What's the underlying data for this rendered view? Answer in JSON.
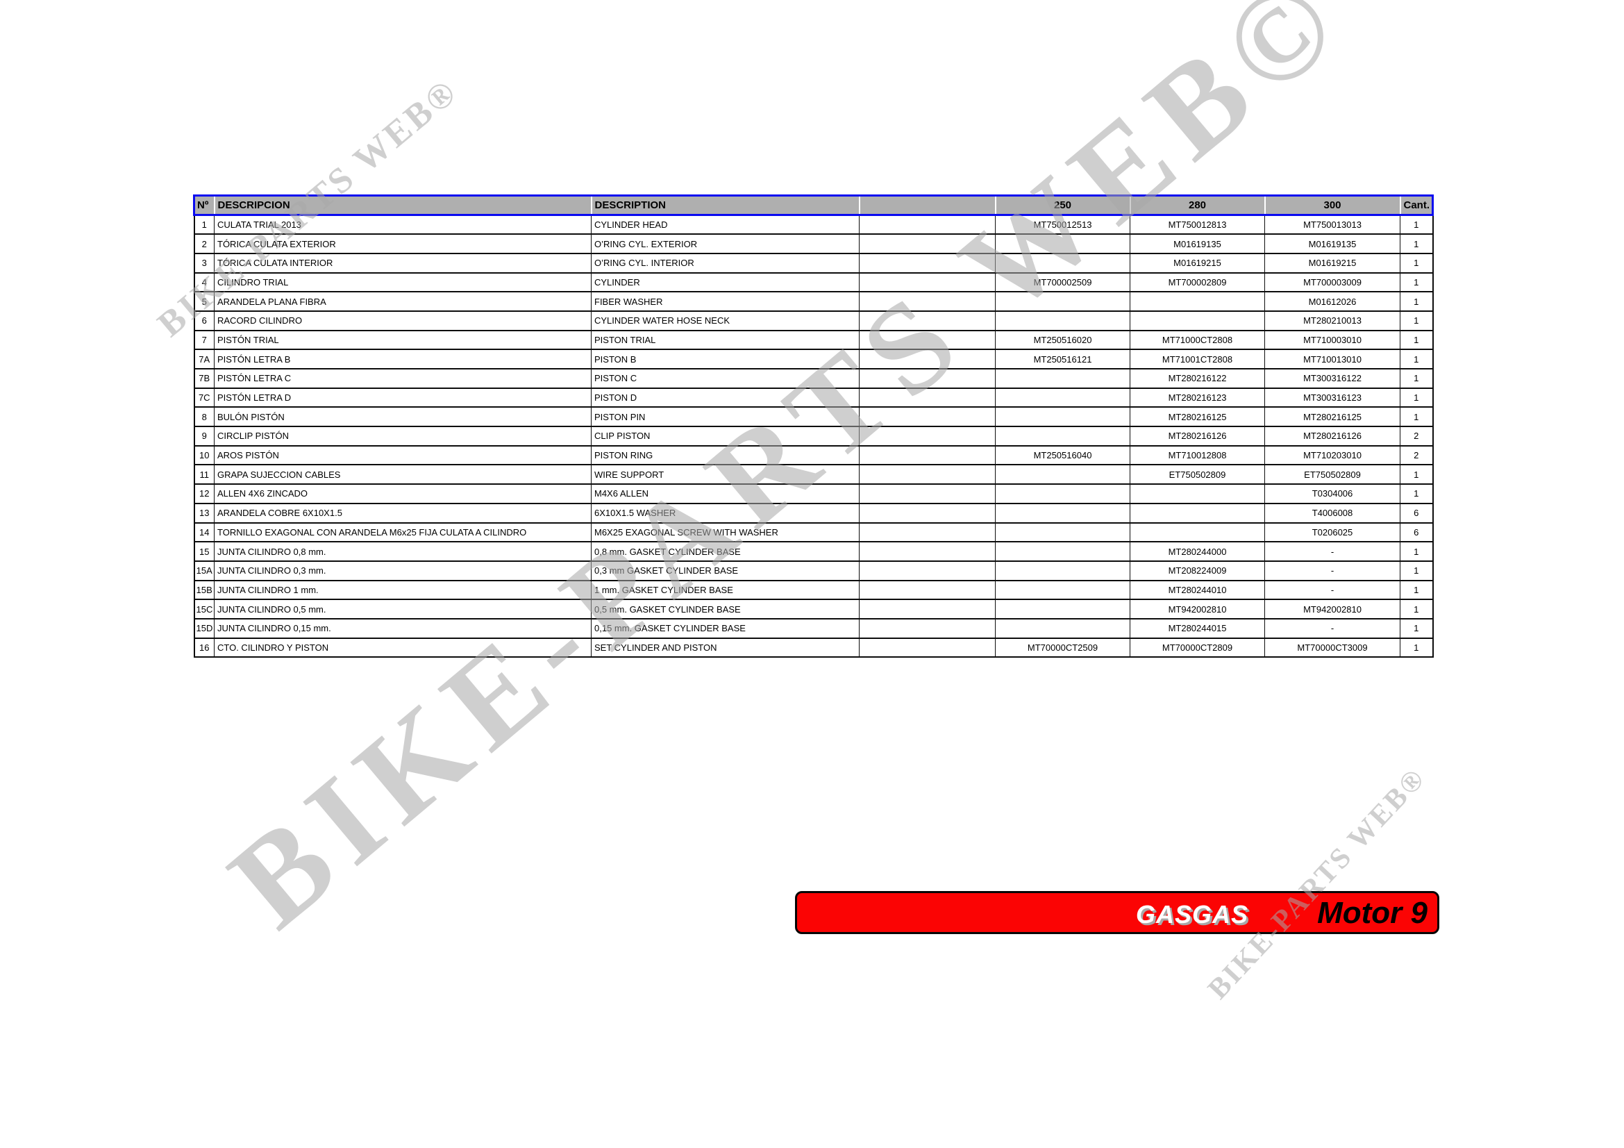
{
  "colors": {
    "accent_blue": "#0a0af0",
    "header_gray": "#afafaf",
    "banner_red": "#fb0404",
    "watermark_gray": "#bdbdbd",
    "border_black": "#000000"
  },
  "watermarks": {
    "large": "BIKE-PARTS WEB©",
    "top_left": "BIKE-PARTS WEB®",
    "bottom_right": "BIKE-PARTS WEB®"
  },
  "banner": {
    "brand": "GASGAS",
    "model": "Motor 9"
  },
  "table": {
    "headers": {
      "num": "Nº",
      "desc_es": "DESCRIPCION",
      "desc_en": "DESCRIPTION",
      "blank": "",
      "c250": "250",
      "c280": "280",
      "c300": "300",
      "qty": "Cant."
    },
    "rows": [
      {
        "n": "1",
        "desc_es": "CULATA TRIAL 2013",
        "desc_en": "CYLINDER HEAD",
        "blank": "",
        "c250": "MT750012513",
        "c280": "MT750012813",
        "c300": "MT750013013",
        "qty": "1"
      },
      {
        "n": "2",
        "desc_es": "TÓRICA CULATA EXTERIOR",
        "desc_en": "O’RING CYL. EXTERIOR",
        "blank": "",
        "c250": "",
        "c280": "M01619135",
        "c300": "M01619135",
        "qty": "1"
      },
      {
        "n": "3",
        "desc_es": "TÓRICA CULATA INTERIOR",
        "desc_en": "O’RING CYL. INTERIOR",
        "blank": "",
        "c250": "",
        "c280": "M01619215",
        "c300": "M01619215",
        "qty": "1"
      },
      {
        "n": "4",
        "desc_es": "CILINDRO TRIAL",
        "desc_en": "CYLINDER",
        "blank": "",
        "c250": "MT700002509",
        "c280": "MT700002809",
        "c300": "MT700003009",
        "qty": "1"
      },
      {
        "n": "5",
        "desc_es": "ARANDELA PLANA FIBRA",
        "desc_en": "FIBER WASHER",
        "blank": "",
        "c250": "",
        "c280": "",
        "c300": "M01612026",
        "qty": "1"
      },
      {
        "n": "6",
        "desc_es": "RACORD CILINDRO",
        "desc_en": "CYLINDER WATER HOSE NECK",
        "blank": "",
        "c250": "",
        "c280": "",
        "c300": "MT280210013",
        "qty": "1"
      },
      {
        "n": "7",
        "desc_es": "PISTÓN TRIAL",
        "desc_en": "PISTON TRIAL",
        "blank": "",
        "c250": "MT250516020",
        "c280": "MT71000CT2808",
        "c300": "MT710003010",
        "qty": "1"
      },
      {
        "n": "7A",
        "desc_es": "PISTÓN LETRA B",
        "desc_en": "PISTON B",
        "blank": "",
        "c250": "MT250516121",
        "c280": "MT71001CT2808",
        "c300": "MT710013010",
        "qty": "1"
      },
      {
        "n": "7B",
        "desc_es": "PISTÓN LETRA C",
        "desc_en": "PISTON C",
        "blank": "",
        "c250": "",
        "c280": "MT280216122",
        "c300": "MT300316122",
        "qty": "1"
      },
      {
        "n": "7C",
        "desc_es": "PISTÓN LETRA D",
        "desc_en": "PISTON D",
        "blank": "",
        "c250": "",
        "c280": "MT280216123",
        "c300": "MT300316123",
        "qty": "1"
      },
      {
        "n": "8",
        "desc_es": "BULÓN PISTÓN",
        "desc_en": "PISTON  PIN",
        "blank": "",
        "c250": "",
        "c280": "MT280216125",
        "c300": "MT280216125",
        "qty": "1"
      },
      {
        "n": "9",
        "desc_es": "CIRCLIP PISTÓN",
        "desc_en": "CLIP PISTON",
        "blank": "",
        "c250": "",
        "c280": "MT280216126",
        "c300": "MT280216126",
        "qty": "2"
      },
      {
        "n": "10",
        "desc_es": "AROS PISTÓN",
        "desc_en": "PISTON RING",
        "blank": "",
        "c250": "MT250516040",
        "c280": "MT710012808",
        "c300": "MT710203010",
        "qty": "2"
      },
      {
        "n": "11",
        "desc_es": "GRAPA SUJECCION CABLES",
        "desc_en": "WIRE SUPPORT",
        "blank": "",
        "c250": "",
        "c280": "ET750502809",
        "c300": "ET750502809",
        "qty": "1"
      },
      {
        "n": "12",
        "desc_es": "ALLEN 4X6 ZINCADO",
        "desc_en": "M4X6 ALLEN",
        "blank": "",
        "c250": "",
        "c280": "",
        "c300": "T0304006",
        "qty": "1"
      },
      {
        "n": "13",
        "desc_es": "ARANDELA COBRE 6X10X1.5",
        "desc_en": "6X10X1.5 WASHER",
        "blank": "",
        "c250": "",
        "c280": "",
        "c300": "T4006008",
        "qty": "6"
      },
      {
        "n": "14",
        "desc_es": "TORNILLO EXAGONAL CON ARANDELA M6x25 FIJA CULATA A CILINDRO",
        "desc_en": "M6X25 EXAGONAL SCREW WITH WASHER",
        "blank": "",
        "c250": "",
        "c280": "",
        "c300": "T0206025",
        "qty": "6"
      },
      {
        "n": "15",
        "desc_es": "JUNTA CILINDRO 0,8 mm.",
        "desc_en": "0,8 mm. GASKET CYLINDER BASE",
        "blank": "",
        "c250": "",
        "c280": "MT280244000",
        "c300": "-",
        "qty": "1"
      },
      {
        "n": "15A",
        "desc_es": "JUNTA CILINDRO 0,3 mm.",
        "desc_en": "0,3 mm GASKET CYLINDER BASE",
        "blank": "",
        "c250": "",
        "c280": "MT208224009",
        "c300": "-",
        "qty": "1"
      },
      {
        "n": "15B",
        "desc_es": "JUNTA CILINDRO 1 mm.",
        "desc_en": "1 mm. GASKET CYLINDER BASE",
        "blank": "",
        "c250": "",
        "c280": "MT280244010",
        "c300": "-",
        "qty": "1"
      },
      {
        "n": "15C",
        "desc_es": "JUNTA CILINDRO 0,5 mm.",
        "desc_en": "0,5 mm. GASKET CYLINDER BASE",
        "blank": "",
        "c250": "",
        "c280": "MT942002810",
        "c300": "MT942002810",
        "qty": "1"
      },
      {
        "n": "15D",
        "desc_es": "JUNTA CILINDRO 0,15 mm.",
        "desc_en": "0,15 mm. GASKET CYLINDER BASE",
        "blank": "",
        "c250": "",
        "c280": "MT280244015",
        "c300": "-",
        "qty": "1"
      },
      {
        "n": "16",
        "desc_es": "CTO. CILINDRO Y PISTON",
        "desc_en": "SET CYLINDER AND PISTON",
        "blank": "",
        "c250": "MT70000CT2509",
        "c280": "MT70000CT2809",
        "c300": "MT70000CT3009",
        "qty": "1"
      }
    ]
  }
}
